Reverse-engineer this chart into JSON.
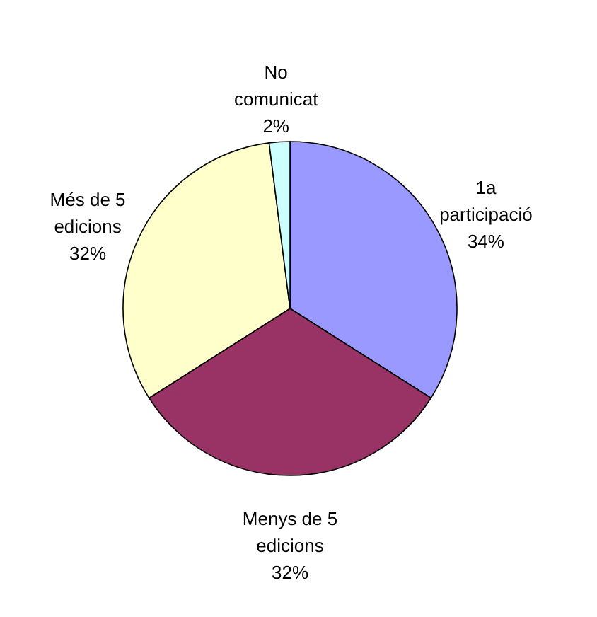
{
  "chart_data": {
    "type": "pie",
    "categories": [
      "1a participació",
      "Menys de 5 edicions",
      "Més de 5 edicions",
      "No comunicat"
    ],
    "values": [
      34,
      32,
      32,
      2
    ],
    "colors": [
      "#9999ff",
      "#993366",
      "#ffffcc",
      "#ccffff"
    ],
    "value_labels": [
      "34%",
      "32%",
      "32%",
      "2%"
    ]
  }
}
